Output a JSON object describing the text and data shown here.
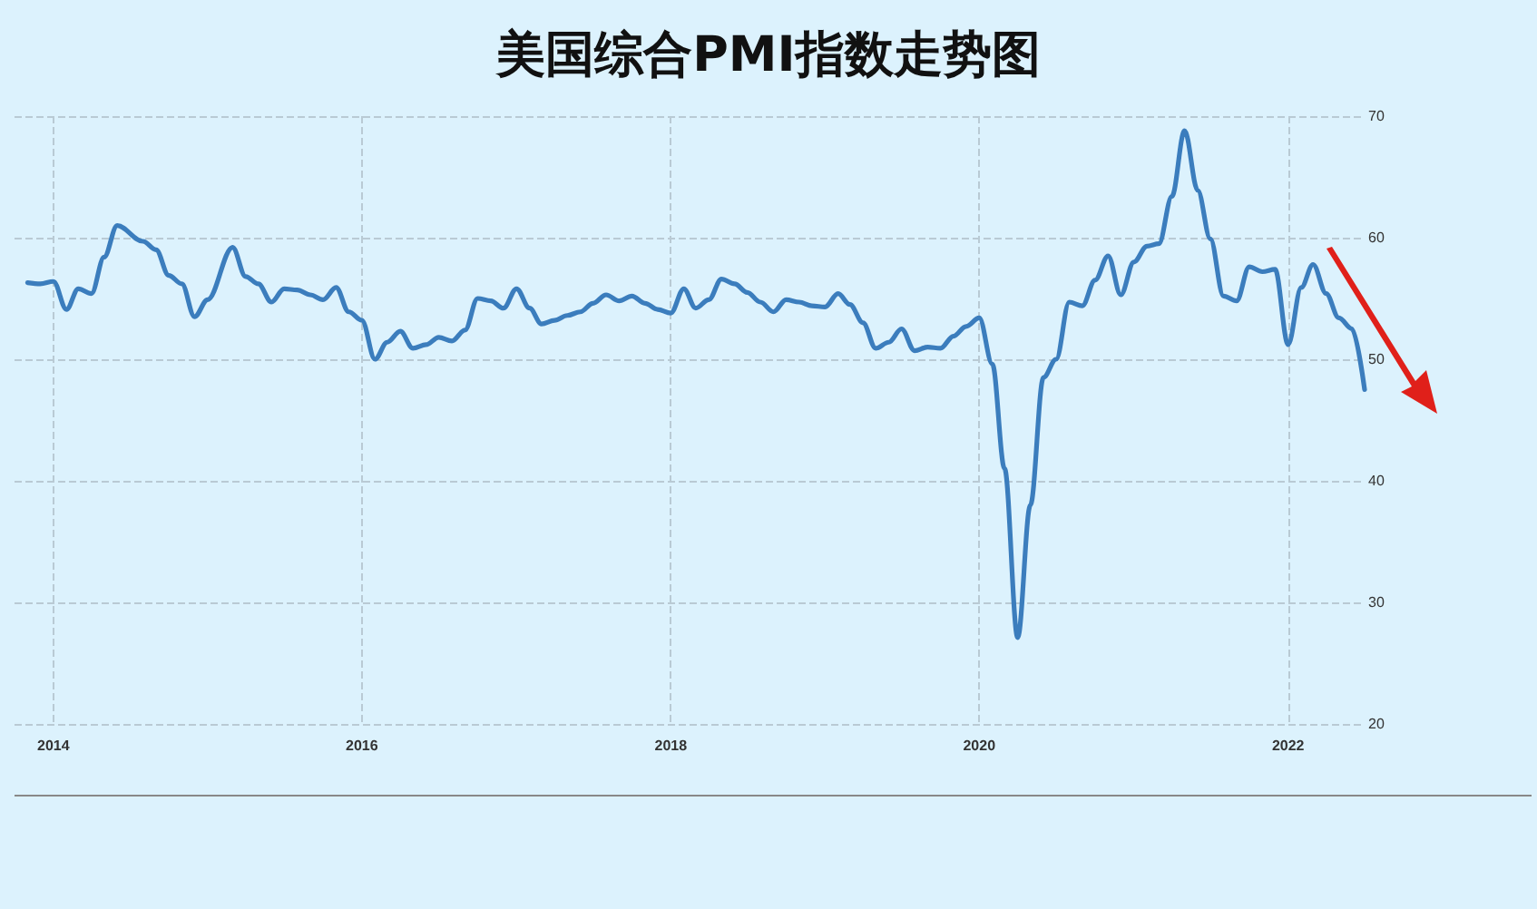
{
  "chart_data": {
    "type": "line",
    "title": "美国综合PMI指数走势图",
    "x": [
      "2013-11",
      "2013-12",
      "2014-01",
      "2014-02",
      "2014-03",
      "2014-04",
      "2014-05",
      "2014-06",
      "2014-08",
      "2014-09",
      "2014-10",
      "2014-11",
      "2014-12",
      "2015-01",
      "2015-03",
      "2015-04",
      "2015-05",
      "2015-06",
      "2015-07",
      "2015-08",
      "2015-09",
      "2015-10",
      "2015-11",
      "2015-12",
      "2016-01",
      "2016-02",
      "2016-03",
      "2016-04",
      "2016-05",
      "2016-06",
      "2016-07",
      "2016-08",
      "2016-09",
      "2016-10",
      "2016-11",
      "2016-12",
      "2017-01",
      "2017-02",
      "2017-03",
      "2017-04",
      "2017-05",
      "2017-06",
      "2017-07",
      "2017-08",
      "2017-09",
      "2017-10",
      "2017-11",
      "2017-12",
      "2018-01",
      "2018-02",
      "2018-03",
      "2018-04",
      "2018-05",
      "2018-06",
      "2018-07",
      "2018-08",
      "2018-09",
      "2018-10",
      "2018-11",
      "2018-12",
      "2019-01",
      "2019-02",
      "2019-03",
      "2019-04",
      "2019-05",
      "2019-06",
      "2019-07",
      "2019-08",
      "2019-09",
      "2019-10",
      "2019-11",
      "2019-12",
      "2020-01",
      "2020-02",
      "2020-03",
      "2020-04",
      "2020-05",
      "2020-06",
      "2020-07",
      "2020-08",
      "2020-09",
      "2020-10",
      "2020-11",
      "2020-12",
      "2021-01",
      "2021-02",
      "2021-03",
      "2021-04",
      "2021-05",
      "2021-06",
      "2021-07",
      "2021-08",
      "2021-09",
      "2021-10",
      "2021-11",
      "2021-12",
      "2022-01",
      "2022-02",
      "2022-03",
      "2022-04",
      "2022-05",
      "2022-06",
      "2022-07"
    ],
    "series": [
      {
        "color": "#3b7dbd",
        "values": [
          56.3,
          56.2,
          56.4,
          54.1,
          55.8,
          55.4,
          58.4,
          61.0,
          59.7,
          59.0,
          56.9,
          56.2,
          53.5,
          54.9,
          59.2,
          56.8,
          56.2,
          54.7,
          55.8,
          55.7,
          55.3,
          54.9,
          55.9,
          53.9,
          53.2,
          50.0,
          51.4,
          52.3,
          50.9,
          51.2,
          51.8,
          51.5,
          52.4,
          55.0,
          54.8,
          54.2,
          55.8,
          54.2,
          52.9,
          53.2,
          53.6,
          53.9,
          54.6,
          55.3,
          54.8,
          55.2,
          54.6,
          54.1,
          53.8,
          55.8,
          54.2,
          54.9,
          56.6,
          56.2,
          55.5,
          54.7,
          53.9,
          54.9,
          54.7,
          54.4,
          54.3,
          55.4,
          54.5,
          53.0,
          50.9,
          51.4,
          52.5,
          50.7,
          51.0,
          50.9,
          51.9,
          52.7,
          53.4,
          49.6,
          41.0,
          27.1,
          38.0,
          48.5,
          50.0,
          54.7,
          54.4,
          56.5,
          58.5,
          55.3,
          58.0,
          59.3,
          59.5,
          63.4,
          68.8,
          63.9,
          59.9,
          55.2,
          54.8,
          57.6,
          57.2,
          57.4,
          51.2,
          55.9,
          57.8,
          55.4,
          53.4,
          52.5,
          47.5
        ]
      }
    ],
    "xlim": [
      "2013-10",
      "2022-07"
    ],
    "xticks": [
      {
        "value": "2014-01",
        "label": "2014"
      },
      {
        "value": "2016-01",
        "label": "2016"
      },
      {
        "value": "2018-01",
        "label": "2018"
      },
      {
        "value": "2020-01",
        "label": "2020"
      },
      {
        "value": "2022-01",
        "label": "2022"
      }
    ],
    "ylim": [
      20,
      70
    ],
    "yticks": [
      20,
      30,
      40,
      50,
      60,
      70
    ],
    "grid": true,
    "marker": "none",
    "line_style": "solid"
  }
}
